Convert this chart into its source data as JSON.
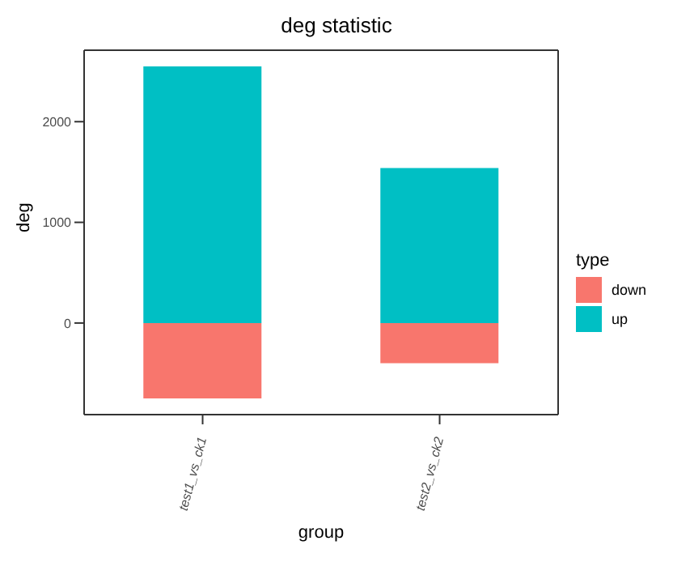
{
  "chart_data": {
    "type": "bar",
    "title": "deg statistic",
    "xlabel": "group",
    "ylabel": "deg",
    "legend_title": "type",
    "categories": [
      "test1_vs_ck1",
      "test2_vs_ck2"
    ],
    "stacked": true,
    "series": [
      {
        "name": "down",
        "color": "#f8766d",
        "values": [
          -750,
          -400
        ]
      },
      {
        "name": "up",
        "color": "#00bfc4",
        "values": [
          2550,
          1540
        ]
      }
    ],
    "ylim": [
      -910,
      2710
    ],
    "yticks": [
      0,
      1000,
      2000
    ],
    "grid": false,
    "legend": "right"
  }
}
